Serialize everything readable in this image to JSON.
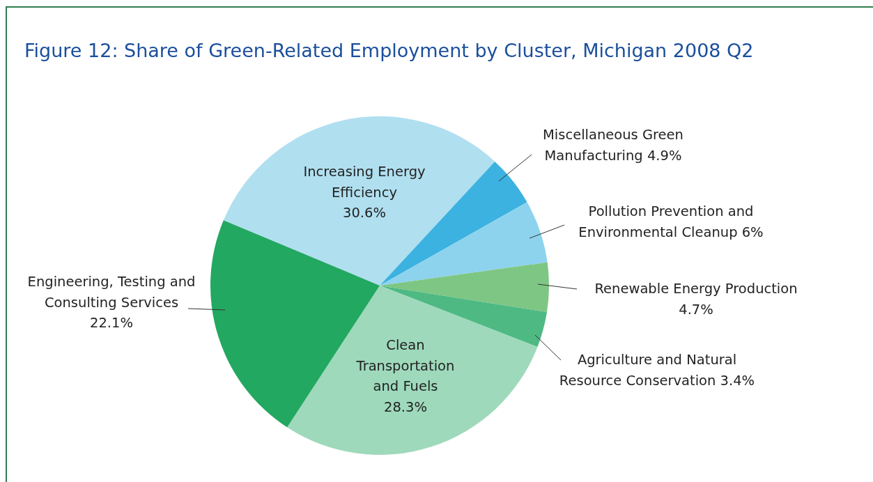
{
  "chart_data": {
    "type": "pie",
    "title": "Figure 12: Share of Green-Related Employment by Cluster, Michigan 2008 Q2",
    "categories": [
      "Increasing Energy Efficiency",
      "Miscellaneous Green Manufacturing",
      "Pollution Prevention and Environmental Cleanup",
      "Renewable Energy Production",
      "Agriculture and Natural Resource Conservation",
      "Clean Transportation and Fuels",
      "Engineering, Testing and Consulting Services"
    ],
    "values": [
      30.6,
      4.9,
      6,
      4.7,
      3.4,
      28.3,
      22.1
    ],
    "value_labels": [
      "30.6%",
      "4.9%",
      "6%",
      "4.7%",
      "3.4%",
      "28.3%",
      "22.1%"
    ],
    "colors": [
      "#b0dff0",
      "#3cb2e0",
      "#8dd3ee",
      "#7ec683",
      "#4fb984",
      "#9ed9bb",
      "#22a860"
    ]
  }
}
